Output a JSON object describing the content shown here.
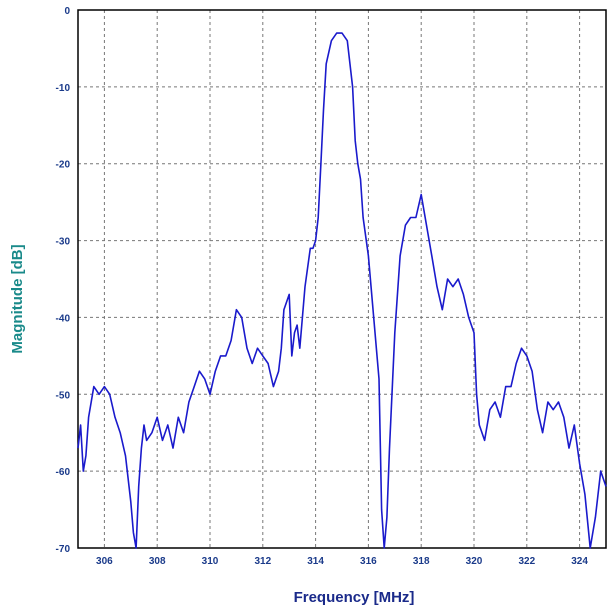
{
  "chart_data": {
    "type": "line",
    "title": "",
    "xlabel": "Frequency [MHz]",
    "ylabel": "Magnitude [dB]",
    "xlim": [
      305,
      325
    ],
    "ylim": [
      -70,
      0
    ],
    "xticks": [
      306,
      308,
      310,
      312,
      314,
      316,
      318,
      320,
      322,
      324
    ],
    "yticks": [
      0,
      -10,
      -20,
      -30,
      -40,
      -50,
      -60,
      -70
    ],
    "grid": true,
    "colors": {
      "line": "#1a1acc",
      "ylabel": "#1a8a8a",
      "xlabel": "#1a2a8a",
      "tick_labels": "#1a3a8a",
      "grid": "#777777",
      "axes": "#000000"
    },
    "series": [
      {
        "x": [
          305.0,
          305.1,
          305.2,
          305.3,
          305.4,
          305.5,
          305.6,
          305.8,
          306.0,
          306.2,
          306.4,
          306.6,
          306.8,
          307.0,
          307.1,
          307.2,
          307.3,
          307.4,
          307.5,
          307.6,
          307.8,
          308.0,
          308.2,
          308.4,
          308.6,
          308.8,
          309.0,
          309.2,
          309.4,
          309.6,
          309.8,
          310.0,
          310.2,
          310.4,
          310.6,
          310.8,
          311.0,
          311.2,
          311.4,
          311.6,
          311.8,
          312.0,
          312.2,
          312.4,
          312.6,
          312.7,
          312.8,
          313.0,
          313.1,
          313.2,
          313.3,
          313.4,
          313.5,
          313.6,
          313.8,
          313.9,
          314.0,
          314.1,
          314.2,
          314.3,
          314.4,
          314.6,
          314.8,
          315.0,
          315.2,
          315.4,
          315.5,
          315.6,
          315.7,
          315.8,
          316.0,
          316.2,
          316.4,
          316.5,
          316.6,
          316.7,
          316.8,
          317.0,
          317.2,
          317.4,
          317.6,
          317.8,
          318.0,
          318.2,
          318.4,
          318.6,
          318.8,
          319.0,
          319.2,
          319.4,
          319.6,
          319.8,
          320.0,
          320.1,
          320.2,
          320.4,
          320.6,
          320.8,
          321.0,
          321.2,
          321.4,
          321.6,
          321.8,
          322.0,
          322.2,
          322.4,
          322.6,
          322.8,
          323.0,
          323.2,
          323.4,
          323.6,
          323.8,
          324.0,
          324.2,
          324.4,
          324.6,
          324.8,
          325.0
        ],
        "y": [
          -57,
          -54,
          -60,
          -58,
          -53,
          -51,
          -49,
          -50,
          -49,
          -50,
          -53,
          -55,
          -58,
          -64,
          -68,
          -70,
          -62,
          -57,
          -54,
          -56,
          -55,
          -53,
          -56,
          -54,
          -57,
          -53,
          -55,
          -51,
          -49,
          -47,
          -48,
          -50,
          -47,
          -45,
          -45,
          -43,
          -39,
          -40,
          -44,
          -46,
          -44,
          -45,
          -46,
          -49,
          -47,
          -44,
          -39,
          -37,
          -45,
          -42,
          -41,
          -44,
          -40,
          -36,
          -31,
          -31,
          -30,
          -27,
          -20,
          -13,
          -7,
          -4,
          -3,
          -3,
          -4,
          -10,
          -17,
          -20,
          -22,
          -27,
          -32,
          -40,
          -48,
          -65,
          -72,
          -66,
          -57,
          -42,
          -32,
          -28,
          -27,
          -27,
          -24,
          -28,
          -32,
          -36,
          -39,
          -35,
          -36,
          -35,
          -37,
          -40,
          -42,
          -50,
          -54,
          -56,
          -52,
          -51,
          -53,
          -49,
          -49,
          -46,
          -44,
          -45,
          -47,
          -52,
          -55,
          -51,
          -52,
          -51,
          -53,
          -57,
          -54,
          -59,
          -63,
          -70,
          -66,
          -60,
          -62
        ]
      }
    ]
  }
}
